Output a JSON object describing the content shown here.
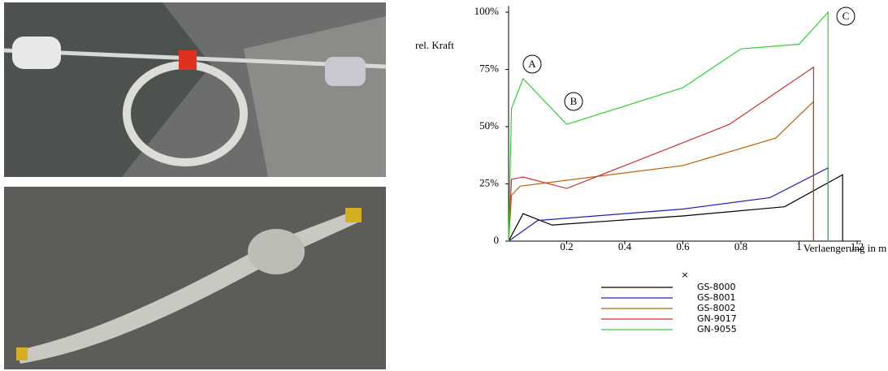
{
  "chart_data": {
    "type": "line",
    "y_label": "rel. Kraft",
    "x_label": "Verlaengerung in m",
    "x_marker": "×",
    "xlim": [
      0,
      1.2
    ],
    "ylim": [
      0,
      102
    ],
    "xticks": [
      0.2,
      0.4,
      0.6,
      0.8,
      {
        "value": 1,
        "label": "1"
      },
      1.2
    ],
    "yticks": [
      0,
      {
        "value": 25,
        "label": "25%"
      },
      {
        "value": 50,
        "label": "50%"
      },
      {
        "value": 75,
        "label": "75%"
      },
      {
        "value": 100,
        "label": "100%"
      }
    ],
    "annotations": [
      "A",
      "B",
      "C"
    ],
    "series": [
      {
        "name": "GS-8000",
        "color": "#000000",
        "x": [
          0,
          0.05,
          0.15,
          0.2,
          0.6,
          0.95,
          1.15,
          1.15
        ],
        "values": [
          0,
          12,
          7,
          7.5,
          11,
          15,
          29,
          0
        ]
      },
      {
        "name": "GS-8001",
        "color": "#2020c0",
        "x": [
          0,
          0.1,
          0.6,
          0.9,
          1.1,
          1.1
        ],
        "values": [
          0,
          9,
          14,
          19,
          32,
          0
        ]
      },
      {
        "name": "GS-8002",
        "color": "#c06000",
        "x": [
          0,
          0.01,
          0.04,
          0.6,
          0.92,
          1.05,
          1.05
        ],
        "values": [
          0,
          20,
          24,
          33,
          45,
          61,
          0
        ]
      },
      {
        "name": "GN-9017",
        "color": "#d03030",
        "x": [
          0,
          0.01,
          0.05,
          0.2,
          0.6,
          0.76,
          1.05,
          1.05
        ],
        "values": [
          0,
          27,
          28,
          23,
          43,
          51,
          76,
          0
        ]
      },
      {
        "name": "GN-9055",
        "color": "#30d030",
        "x": [
          0,
          0.01,
          0.05,
          0.2,
          0.6,
          0.8,
          1.0,
          1.1,
          1.1
        ],
        "values": [
          0,
          58,
          71,
          51,
          67,
          84,
          86,
          100,
          0
        ]
      }
    ]
  }
}
